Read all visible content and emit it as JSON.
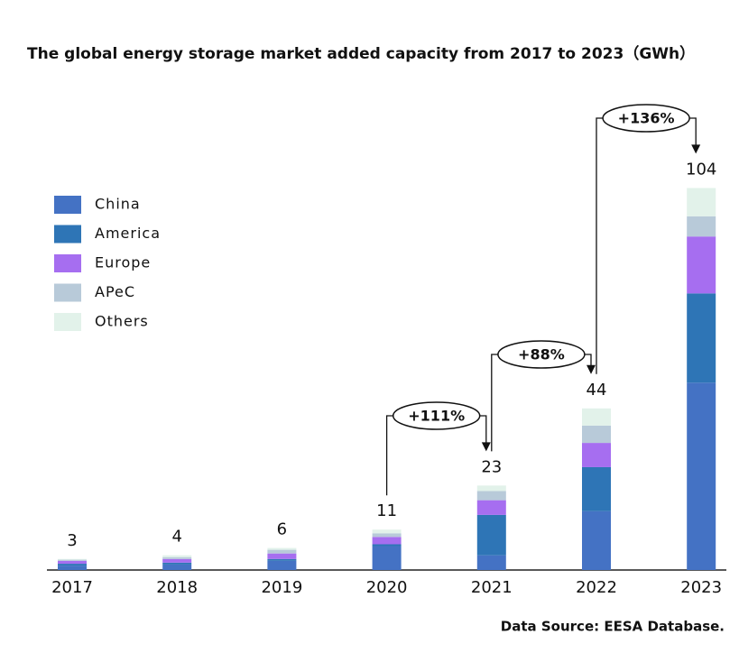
{
  "chart_data": {
    "type": "stacked_bar",
    "title": "The global energy storage market added capacity from 2017 to 2023（GWh）",
    "categories": [
      "2017",
      "2018",
      "2019",
      "2020",
      "2021",
      "2022",
      "2023"
    ],
    "series": [
      {
        "name": "China",
        "color": "#4472c4",
        "values": [
          1.2,
          1.5,
          2.5,
          6.5,
          4,
          16,
          51
        ]
      },
      {
        "name": "America",
        "color": "#2e75b6",
        "values": [
          0.5,
          0.5,
          0.5,
          0.5,
          11,
          12,
          24.3
        ]
      },
      {
        "name": "Europe",
        "color": "#a66ef0",
        "values": [
          0.8,
          1,
          1.5,
          2,
          4,
          6.6,
          15.5
        ]
      },
      {
        "name": "APeC",
        "color": "#b8cad9",
        "values": [
          0.3,
          0.5,
          1,
          1,
          2.5,
          4.7,
          5.5
        ]
      },
      {
        "name": "Others",
        "color": "#e2f2ea",
        "values": [
          0.2,
          0.5,
          0.5,
          1,
          1.5,
          4.7,
          7.7
        ]
      }
    ],
    "totals": [
      3,
      4,
      6,
      11,
      23,
      44,
      104
    ],
    "annotations": [
      "+111%",
      "+88%",
      "+136%"
    ],
    "ylim": [
      0,
      110
    ],
    "source": "Data Source: EESA Database."
  }
}
